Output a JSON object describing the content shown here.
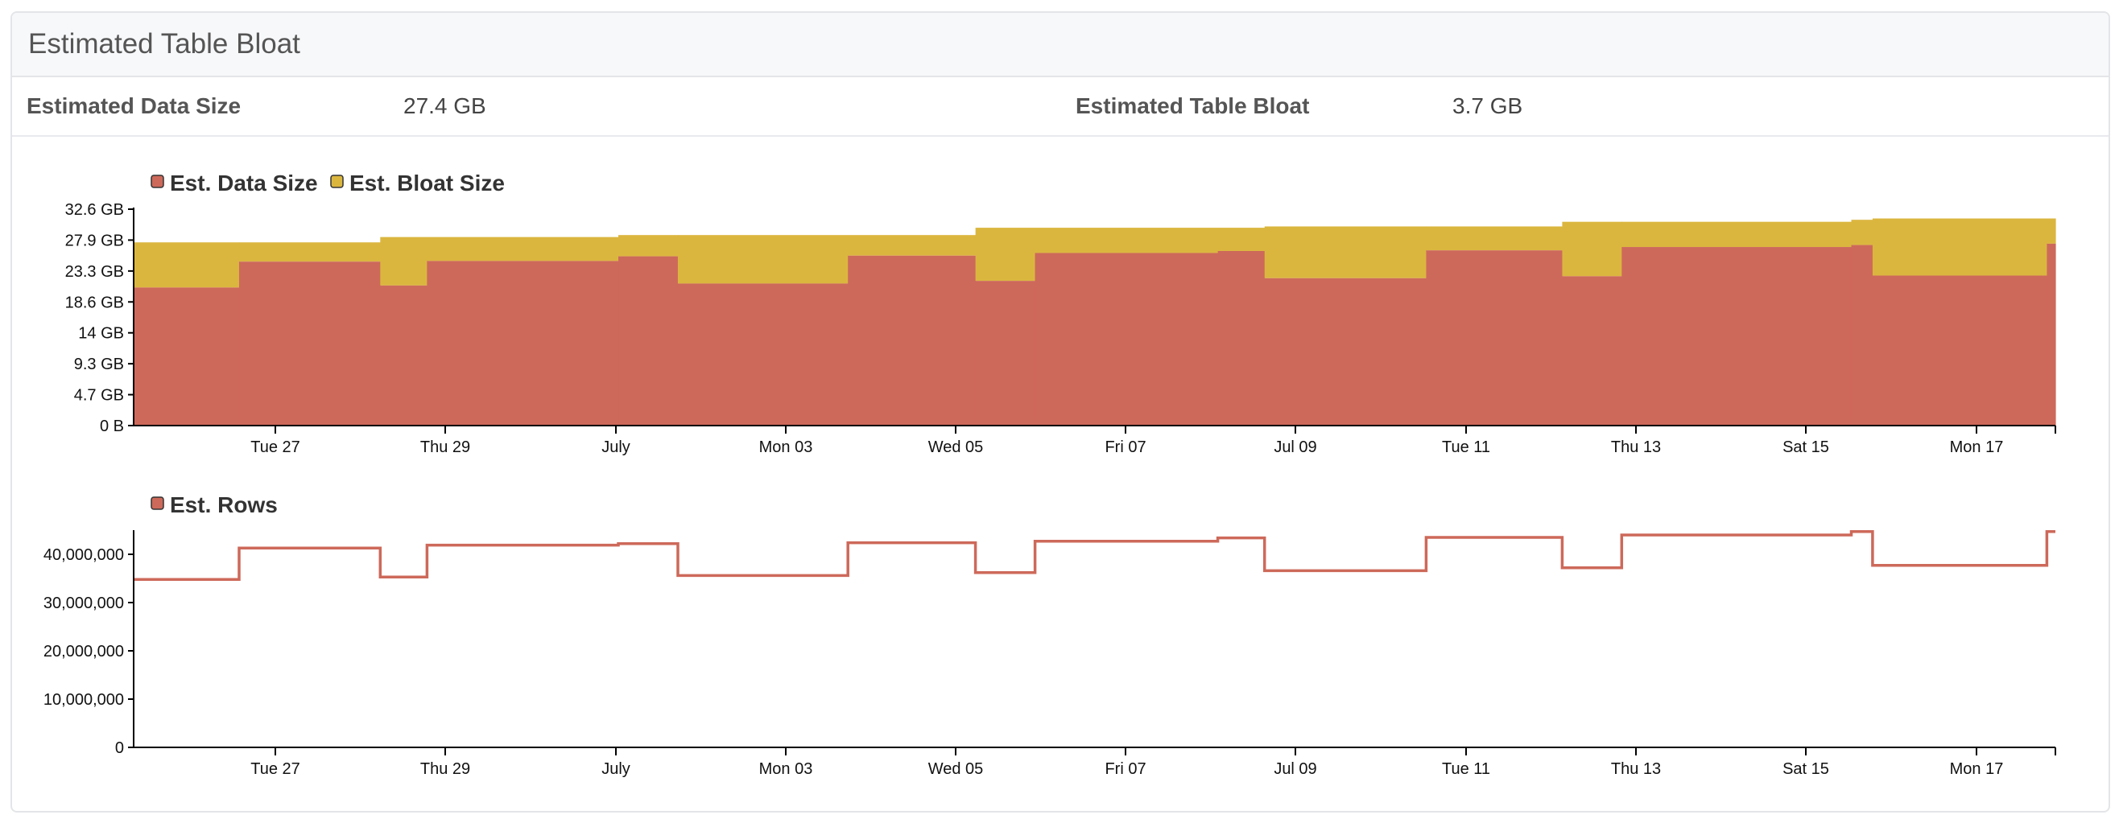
{
  "panel": {
    "title": "Estimated Table Bloat"
  },
  "stats": {
    "data_size_label": "Estimated Data Size",
    "data_size_value": "27.4 GB",
    "bloat_label": "Estimated Table Bloat",
    "bloat_value": "3.7 GB"
  },
  "colors": {
    "data": "#cd695a",
    "bloat": "#dbb63f"
  },
  "chart_data": [
    {
      "type": "area",
      "stacked": true,
      "step": true,
      "legend": [
        "Est. Data Size",
        "Est. Bloat Size"
      ],
      "legend_position": "top-left",
      "x_ticks": [
        "Tue 27",
        "Thu 29",
        "July",
        "Mon 03",
        "Wed 05",
        "Fri 07",
        "Jul 09",
        "Tue 11",
        "Thu 13",
        "Sat 15",
        "Mon 17"
      ],
      "y_ticks": [
        "0 B",
        "4.7 GB",
        "9.3 GB",
        "14 GB",
        "18.6 GB",
        "23.3 GB",
        "27.9 GB",
        "32.6 GB"
      ],
      "y_range_gb": [
        0,
        32.6
      ],
      "x_range_days": [
        0,
        22.6
      ],
      "grid": false,
      "steps": [
        {
          "start": 0,
          "data_gb": 20.8,
          "total_gb": 27.6
        },
        {
          "start": 1.24,
          "data_gb": 24.7,
          "total_gb": 27.6
        },
        {
          "start": 2.9,
          "data_gb": 21.1,
          "total_gb": 28.4
        },
        {
          "start": 3.45,
          "data_gb": 24.8,
          "total_gb": 28.4
        },
        {
          "start": 5.7,
          "data_gb": 25.5,
          "total_gb": 28.7
        },
        {
          "start": 6.4,
          "data_gb": 21.4,
          "total_gb": 28.7
        },
        {
          "start": 8.4,
          "data_gb": 25.6,
          "total_gb": 28.7
        },
        {
          "start": 9.9,
          "data_gb": 21.8,
          "total_gb": 29.8
        },
        {
          "start": 10.6,
          "data_gb": 26.0,
          "total_gb": 29.8
        },
        {
          "start": 12.75,
          "data_gb": 26.3,
          "total_gb": 29.8
        },
        {
          "start": 13.3,
          "data_gb": 22.2,
          "total_gb": 30.0
        },
        {
          "start": 15.2,
          "data_gb": 26.4,
          "total_gb": 30.0
        },
        {
          "start": 16.8,
          "data_gb": 22.5,
          "total_gb": 30.7
        },
        {
          "start": 17.5,
          "data_gb": 26.9,
          "total_gb": 30.7
        },
        {
          "start": 20.2,
          "data_gb": 27.2,
          "total_gb": 31.0
        },
        {
          "start": 20.45,
          "data_gb": 22.6,
          "total_gb": 31.2
        },
        {
          "start": 22.5,
          "data_gb": 27.4,
          "total_gb": 31.2
        }
      ]
    },
    {
      "type": "line",
      "step": true,
      "legend": [
        "Est. Rows"
      ],
      "legend_position": "top-left",
      "x_ticks": [
        "Tue 27",
        "Thu 29",
        "July",
        "Mon 03",
        "Wed 05",
        "Fri 07",
        "Jul 09",
        "Tue 11",
        "Thu 13",
        "Sat 15",
        "Mon 17"
      ],
      "y_ticks": [
        "0",
        "10,000,000",
        "20,000,000",
        "30,000,000",
        "40,000,000"
      ],
      "y_range": [
        0,
        45000000
      ],
      "x_range_days": [
        0,
        22.6
      ],
      "grid": false,
      "steps": [
        {
          "start": 0,
          "rows": 34800000
        },
        {
          "start": 1.24,
          "rows": 41300000
        },
        {
          "start": 2.9,
          "rows": 35300000
        },
        {
          "start": 3.45,
          "rows": 41900000
        },
        {
          "start": 5.7,
          "rows": 42200000
        },
        {
          "start": 6.4,
          "rows": 35600000
        },
        {
          "start": 8.4,
          "rows": 42400000
        },
        {
          "start": 9.9,
          "rows": 36200000
        },
        {
          "start": 10.6,
          "rows": 42700000
        },
        {
          "start": 12.75,
          "rows": 43400000
        },
        {
          "start": 13.3,
          "rows": 36600000
        },
        {
          "start": 15.2,
          "rows": 43500000
        },
        {
          "start": 16.8,
          "rows": 37200000
        },
        {
          "start": 17.5,
          "rows": 44000000
        },
        {
          "start": 20.2,
          "rows": 44700000
        },
        {
          "start": 20.45,
          "rows": 37700000
        },
        {
          "start": 22.5,
          "rows": 44700000
        }
      ]
    }
  ]
}
